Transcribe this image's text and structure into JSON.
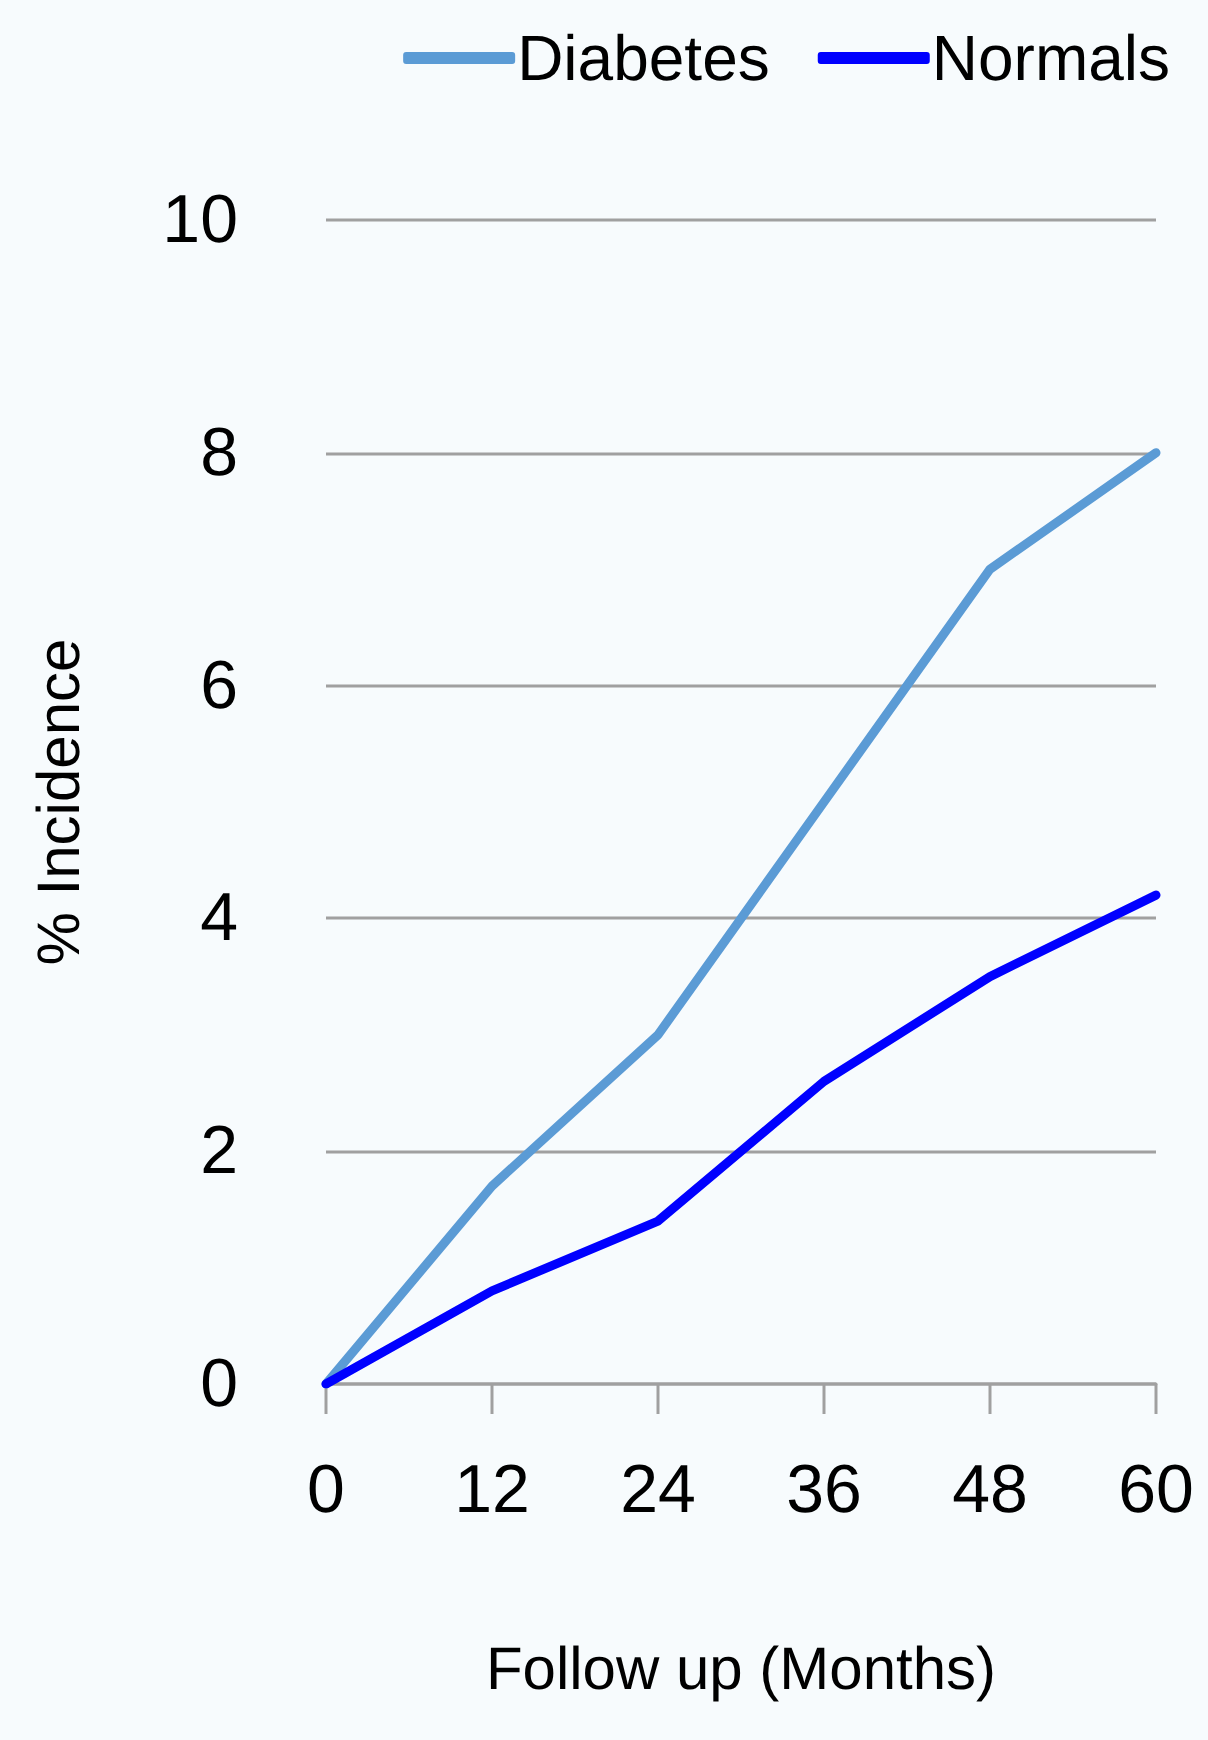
{
  "chart_data": {
    "type": "line",
    "xlabel": "Follow up (Months)",
    "ylabel": "% Incidence",
    "x": [
      0,
      12,
      24,
      36,
      48,
      60
    ],
    "series": [
      {
        "name": "Diabetes",
        "color": "#5b9bd5",
        "values": [
          0,
          1.7,
          3.0,
          5.0,
          7.0,
          8.0
        ]
      },
      {
        "name": "Normals",
        "color": "#0000ff",
        "values": [
          0,
          0.8,
          1.4,
          2.6,
          3.5,
          4.2
        ]
      }
    ],
    "xlim": [
      0,
      60
    ],
    "xticks": [
      0,
      12,
      24,
      36,
      48,
      60
    ],
    "ylim": [
      0,
      10
    ],
    "yticks": [
      0,
      2,
      4,
      6,
      8,
      10
    ],
    "grid": "y",
    "legend": "top right",
    "marker": "none",
    "line_style": "solid"
  }
}
